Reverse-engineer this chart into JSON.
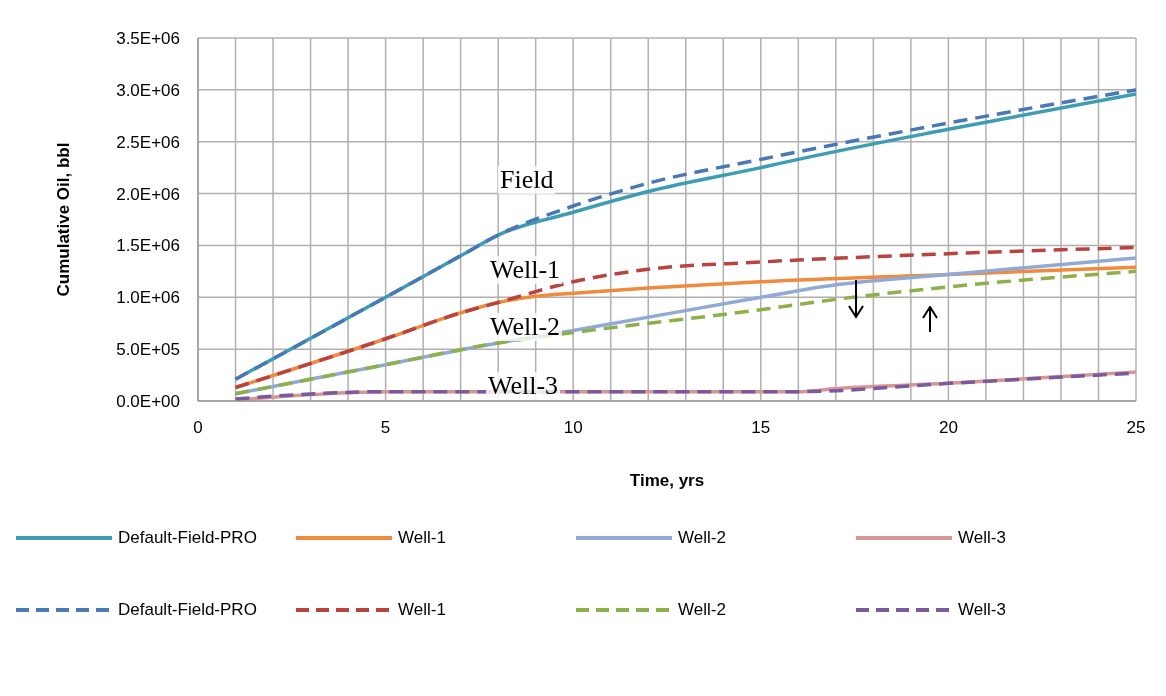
{
  "chart_data": {
    "type": "line",
    "xlabel": "Time, yrs",
    "ylabel": "Cumulative Oil, bbl",
    "xlim": [
      0,
      25
    ],
    "xticks": [
      0,
      {
        "value": 1,
        "label": null
      },
      {
        "value": 2,
        "label": null
      },
      {
        "value": 3,
        "label": null
      },
      {
        "value": 4,
        "label": null
      },
      5,
      {
        "value": 6,
        "label": null
      },
      {
        "value": 7,
        "label": null
      },
      {
        "value": 8,
        "label": null
      },
      {
        "value": 9,
        "label": null
      },
      10,
      {
        "value": 11,
        "label": null
      },
      {
        "value": 12,
        "label": null
      },
      {
        "value": 13,
        "label": null
      },
      {
        "value": 14,
        "label": null
      },
      15,
      {
        "value": 16,
        "label": null
      },
      {
        "value": 17,
        "label": null
      },
      {
        "value": 18,
        "label": null
      },
      {
        "value": 19,
        "label": null
      },
      20,
      {
        "value": 21,
        "label": null
      },
      {
        "value": 22,
        "label": null
      },
      {
        "value": 23,
        "label": null
      },
      {
        "value": 24,
        "label": null
      },
      25
    ],
    "ylim": [
      0,
      3500000
    ],
    "yticks": [
      {
        "value": 0,
        "label": "0.0E+00"
      },
      {
        "value": 500000,
        "label": "5.0E+05"
      },
      {
        "value": 1000000,
        "label": "1.0E+06"
      },
      {
        "value": 1500000,
        "label": "1.5E+06"
      },
      {
        "value": 2000000,
        "label": "2.0E+06"
      },
      {
        "value": 2500000,
        "label": "2.5E+06"
      },
      {
        "value": 3000000,
        "label": "3.0E+06"
      },
      {
        "value": 3500000,
        "label": "3.5E+06"
      }
    ],
    "grid": true,
    "legend": "bottom",
    "marker": "none",
    "series": [
      {
        "name": "Default-Field-PRO",
        "color": "#3d9db4",
        "line_style": "solid",
        "x": [
          1,
          5,
          7,
          8,
          10,
          12,
          15,
          16,
          20,
          25
        ],
        "values": [
          210000,
          1000000,
          1400000,
          1600000,
          1820000,
          2020000,
          2250000,
          2330000,
          2620000,
          2960000
        ]
      },
      {
        "name": "Well-1",
        "color": "#f08a3c",
        "line_style": "solid",
        "x": [
          1,
          5,
          7,
          8,
          9,
          10,
          12,
          15,
          20,
          25
        ],
        "values": [
          130000,
          600000,
          850000,
          950000,
          1010000,
          1040000,
          1090000,
          1150000,
          1220000,
          1290000
        ]
      },
      {
        "name": "Well-2",
        "color": "#91a9d6",
        "line_style": "solid",
        "x": [
          1,
          5,
          8,
          10,
          15,
          17,
          20,
          25
        ],
        "values": [
          70000,
          350000,
          560000,
          680000,
          1000000,
          1120000,
          1220000,
          1380000
        ]
      },
      {
        "name": "Well-3",
        "color": "#d99594",
        "line_style": "solid",
        "x": [
          1,
          4,
          5,
          16,
          17,
          20,
          25
        ],
        "values": [
          10000,
          80000,
          90000,
          90000,
          120000,
          170000,
          280000
        ]
      },
      {
        "name": "Default-Field-PRO",
        "color": "#4a78b5",
        "line_style": "dashed",
        "x": [
          1,
          5,
          7,
          8,
          10,
          12,
          15,
          20,
          25
        ],
        "values": [
          210000,
          1000000,
          1400000,
          1600000,
          1880000,
          2100000,
          2330000,
          2680000,
          3000000
        ]
      },
      {
        "name": "Well-1",
        "color": "#b8433f",
        "line_style": "dashed",
        "x": [
          1,
          5,
          7,
          8,
          10,
          12,
          15,
          20,
          25
        ],
        "values": [
          130000,
          600000,
          850000,
          950000,
          1150000,
          1270000,
          1340000,
          1420000,
          1480000
        ]
      },
      {
        "name": "Well-2",
        "color": "#8db04a",
        "line_style": "dashed",
        "x": [
          1,
          5,
          8,
          10,
          15,
          17,
          20,
          25
        ],
        "values": [
          70000,
          350000,
          560000,
          660000,
          880000,
          980000,
          1100000,
          1250000
        ]
      },
      {
        "name": "Well-3",
        "color": "#7a5a9e",
        "line_style": "dashed",
        "x": [
          1,
          5,
          16,
          20,
          25
        ],
        "values": [
          20000,
          90000,
          90000,
          170000,
          270000
        ]
      }
    ],
    "annotations": [
      "Field",
      "Well-1",
      "Well-2",
      "Well-3"
    ]
  }
}
